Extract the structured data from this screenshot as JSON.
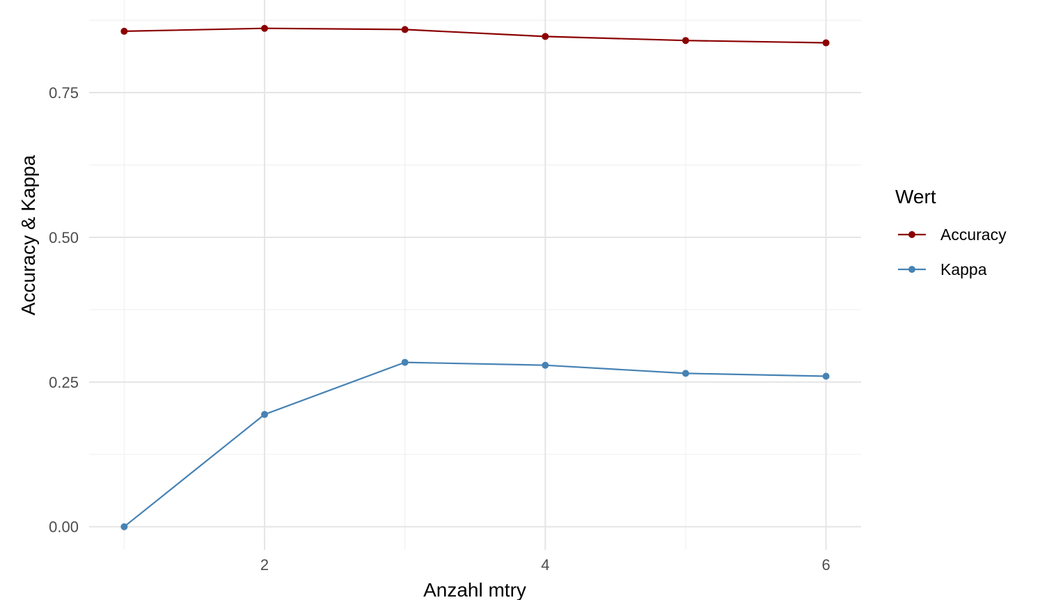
{
  "chart_data": {
    "type": "line",
    "x": [
      1,
      2,
      3,
      4,
      5,
      6
    ],
    "series": [
      {
        "name": "Accuracy",
        "values": [
          0.856,
          0.861,
          0.859,
          0.847,
          0.84,
          0.836
        ],
        "color": "#8B0000"
      },
      {
        "name": "Kappa",
        "values": [
          0.0,
          0.194,
          0.284,
          0.279,
          0.265,
          0.26
        ],
        "color": "#4682B4"
      }
    ],
    "xlabel": "Anzahl mtry",
    "ylabel": "Accuracy & Kappa",
    "xlim": [
      0.75,
      6.25
    ],
    "ylim": [
      -0.04,
      0.91
    ],
    "x_ticks": [
      2,
      4,
      6
    ],
    "x_tick_labels": [
      "2",
      "4",
      "6"
    ],
    "y_ticks": [
      0,
      0.25,
      0.5,
      0.75
    ],
    "y_tick_labels": [
      "0.00",
      "0.25",
      "0.50",
      "0.75"
    ],
    "grid": true,
    "legend": {
      "title": "Wert",
      "position": "right"
    }
  }
}
